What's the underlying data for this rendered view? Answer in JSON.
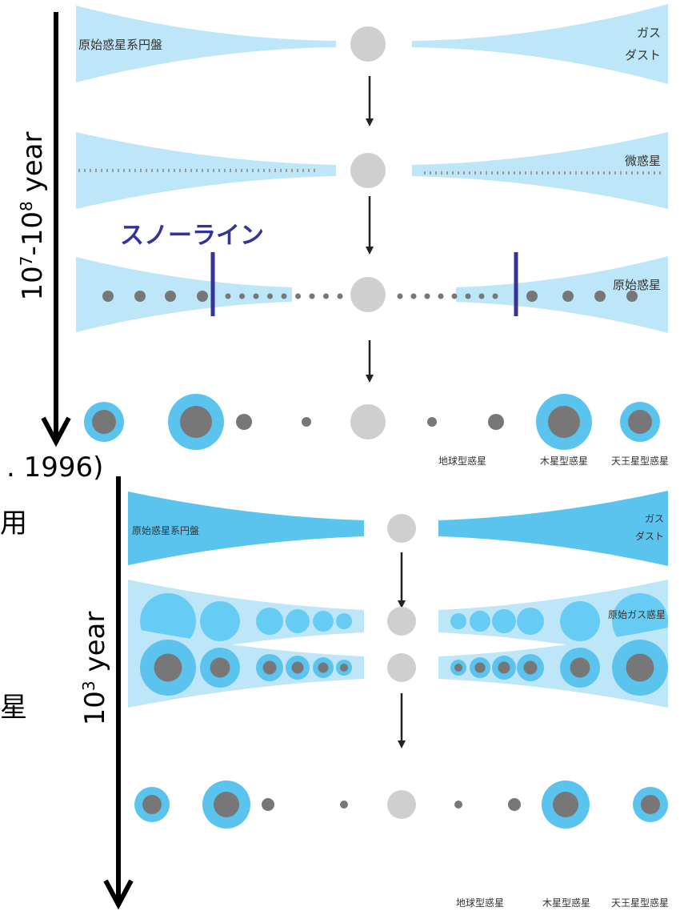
{
  "top": {
    "time": {
      "base": "10",
      "exp1": "7",
      "mid": "-10",
      "exp2": "8",
      "unit": " year"
    },
    "disk": "原始惑星系円盤",
    "gas": "ガス",
    "dust": "ダスト",
    "planetesimal": "微惑星",
    "snowline": "スノーライン",
    "protoplanet": "原始惑星",
    "terrestrial": "地球型惑星",
    "jovian": "木星型惑星",
    "uranian": "天王星型惑星"
  },
  "left_cut": {
    "citation": ". 1996)",
    "char1": "用",
    "char2": "星"
  },
  "bottom": {
    "time": {
      "base": "10",
      "exp": "3",
      "unit": " year"
    },
    "disk": "原始惑星系円盤",
    "gas": "ガス",
    "dust": "ダスト",
    "proto_gas": "原始ガス惑星",
    "terrestrial": "地球型惑星",
    "jovian": "木星型惑星",
    "uranian": "天王星型惑星"
  }
}
